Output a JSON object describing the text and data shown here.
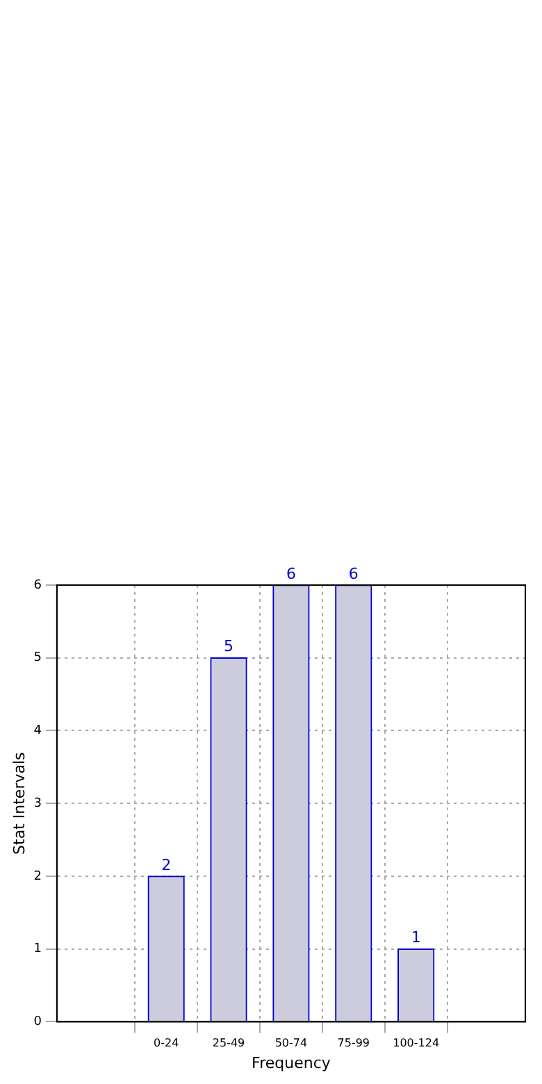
{
  "chart_data": {
    "type": "bar",
    "xlabel": "Frequency",
    "ylabel": "Stat Intervals",
    "categories": [
      "0-24",
      "25-49",
      "50-74",
      "75-99",
      "100-124"
    ],
    "values": [
      2,
      5,
      6,
      6,
      1
    ],
    "color": "#ccccdd",
    "ylim": [
      0,
      6
    ],
    "yticks": [
      0,
      1,
      2,
      3,
      4,
      5,
      6
    ],
    "grid": true,
    "data_labels": true
  }
}
